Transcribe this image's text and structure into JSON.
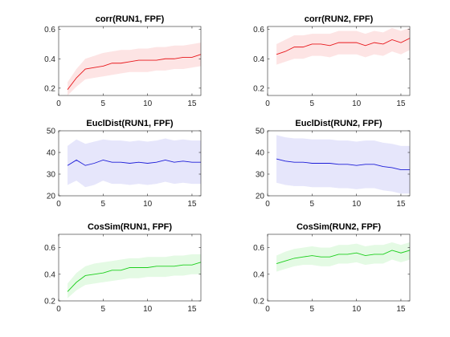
{
  "chart_data": [
    {
      "type": "line",
      "title": "corr(RUN1, FPF)",
      "xlabel": "",
      "ylabel": "",
      "xlim": [
        0,
        16
      ],
      "ylim": [
        0.15,
        0.62
      ],
      "xticks": [
        0,
        5,
        10,
        15
      ],
      "yticks": [
        0.2,
        0.4,
        0.6
      ],
      "xtick_labels": [
        "0",
        "5",
        "10",
        "15"
      ],
      "ytick_labels": [
        "0.2",
        "0.4",
        "0.6"
      ],
      "color": "#e8181c",
      "band_color": "#fde4e4",
      "x": [
        1,
        2,
        3,
        4,
        5,
        6,
        7,
        8,
        9,
        10,
        11,
        12,
        13,
        14,
        15,
        16
      ],
      "mean": [
        0.19,
        0.27,
        0.33,
        0.34,
        0.35,
        0.37,
        0.37,
        0.38,
        0.39,
        0.39,
        0.39,
        0.4,
        0.4,
        0.41,
        0.41,
        0.43
      ],
      "upper": [
        0.24,
        0.33,
        0.4,
        0.42,
        0.44,
        0.45,
        0.46,
        0.46,
        0.47,
        0.47,
        0.48,
        0.48,
        0.49,
        0.49,
        0.5,
        0.51
      ],
      "lower": [
        0.15,
        0.21,
        0.26,
        0.27,
        0.28,
        0.29,
        0.3,
        0.31,
        0.31,
        0.31,
        0.32,
        0.32,
        0.33,
        0.33,
        0.34,
        0.35
      ]
    },
    {
      "type": "line",
      "title": "corr(RUN2, FPF)",
      "xlabel": "",
      "ylabel": "",
      "xlim": [
        0,
        16
      ],
      "ylim": [
        0.15,
        0.62
      ],
      "xticks": [
        0,
        5,
        10,
        15
      ],
      "yticks": [
        0.2,
        0.4,
        0.6
      ],
      "xtick_labels": [
        "0",
        "5",
        "10",
        "15"
      ],
      "ytick_labels": [
        "0.2",
        "0.4",
        "0.6"
      ],
      "color": "#e8181c",
      "band_color": "#fde4e4",
      "x": [
        1,
        2,
        3,
        4,
        5,
        6,
        7,
        8,
        9,
        10,
        11,
        12,
        13,
        14,
        15,
        16
      ],
      "mean": [
        0.43,
        0.45,
        0.48,
        0.48,
        0.5,
        0.5,
        0.49,
        0.51,
        0.51,
        0.51,
        0.49,
        0.51,
        0.5,
        0.53,
        0.51,
        0.54
      ],
      "upper": [
        0.5,
        0.53,
        0.56,
        0.56,
        0.57,
        0.57,
        0.57,
        0.59,
        0.59,
        0.59,
        0.57,
        0.59,
        0.58,
        0.61,
        0.59,
        0.61
      ],
      "lower": [
        0.36,
        0.38,
        0.4,
        0.4,
        0.42,
        0.42,
        0.41,
        0.43,
        0.43,
        0.43,
        0.41,
        0.43,
        0.42,
        0.45,
        0.43,
        0.46
      ]
    },
    {
      "type": "line",
      "title": "EuclDist(RUN1, FPF)",
      "xlabel": "",
      "ylabel": "",
      "xlim": [
        0,
        16
      ],
      "ylim": [
        20,
        50
      ],
      "xticks": [
        0,
        5,
        10,
        15
      ],
      "yticks": [
        20,
        30,
        40,
        50
      ],
      "xtick_labels": [
        "0",
        "5",
        "10",
        "15"
      ],
      "ytick_labels": [
        "20",
        "30",
        "40",
        "50"
      ],
      "color": "#1c1cd8",
      "band_color": "#e6e6fb",
      "x": [
        1,
        2,
        3,
        4,
        5,
        6,
        7,
        8,
        9,
        10,
        11,
        12,
        13,
        14,
        15,
        16
      ],
      "mean": [
        34,
        36.5,
        34,
        35,
        36.5,
        35.5,
        35.5,
        35,
        35.5,
        35,
        35.5,
        36.5,
        35.5,
        36,
        35.5,
        35.5
      ],
      "upper": [
        43,
        46,
        44,
        45,
        46,
        45.5,
        45.5,
        45,
        45.5,
        45,
        45.5,
        46.5,
        45.5,
        46,
        45.5,
        45.5
      ],
      "lower": [
        25,
        27,
        24,
        25,
        27,
        25.5,
        25.5,
        25,
        25.5,
        25,
        25.5,
        26.5,
        25.5,
        26,
        25.5,
        25.5
      ]
    },
    {
      "type": "line",
      "title": "EuclDist(RUN2, FPF)",
      "xlabel": "",
      "ylabel": "",
      "xlim": [
        0,
        16
      ],
      "ylim": [
        20,
        50
      ],
      "xticks": [
        0,
        5,
        10,
        15
      ],
      "yticks": [
        20,
        30,
        40,
        50
      ],
      "xtick_labels": [
        "0",
        "5",
        "10",
        "15"
      ],
      "ytick_labels": [
        "20",
        "30",
        "40",
        "50"
      ],
      "color": "#1c1cd8",
      "band_color": "#e6e6fb",
      "x": [
        1,
        2,
        3,
        4,
        5,
        6,
        7,
        8,
        9,
        10,
        11,
        12,
        13,
        14,
        15,
        16
      ],
      "mean": [
        37,
        36,
        35.5,
        35.5,
        35,
        35,
        35,
        34.5,
        34.5,
        34,
        34.5,
        34.5,
        33.5,
        33,
        32,
        32
      ],
      "upper": [
        48,
        47,
        46.5,
        46.5,
        46,
        46,
        46,
        45.5,
        45.5,
        45,
        45.5,
        45.5,
        44.5,
        44,
        43,
        43
      ],
      "lower": [
        26,
        25,
        24.5,
        24.5,
        24,
        24,
        24,
        23.5,
        23.5,
        23,
        23.5,
        23.5,
        22.5,
        22,
        21,
        21
      ]
    },
    {
      "type": "line",
      "title": "CosSim(RUN1, FPF)",
      "xlabel": "",
      "ylabel": "",
      "xlim": [
        0,
        16
      ],
      "ylim": [
        0.2,
        0.7
      ],
      "xticks": [
        0,
        5,
        10,
        15
      ],
      "yticks": [
        0.2,
        0.4,
        0.6
      ],
      "xtick_labels": [
        "0",
        "5",
        "10",
        "15"
      ],
      "ytick_labels": [
        "0.2",
        "0.4",
        "0.6"
      ],
      "color": "#1ccf1c",
      "band_color": "#e4fae4",
      "x": [
        1,
        2,
        3,
        4,
        5,
        6,
        7,
        8,
        9,
        10,
        11,
        12,
        13,
        14,
        15,
        16
      ],
      "mean": [
        0.27,
        0.34,
        0.39,
        0.4,
        0.41,
        0.43,
        0.43,
        0.45,
        0.45,
        0.45,
        0.46,
        0.46,
        0.46,
        0.47,
        0.47,
        0.49
      ],
      "upper": [
        0.33,
        0.41,
        0.46,
        0.48,
        0.49,
        0.5,
        0.51,
        0.52,
        0.52,
        0.53,
        0.53,
        0.53,
        0.54,
        0.54,
        0.55,
        0.55
      ],
      "lower": [
        0.22,
        0.28,
        0.32,
        0.33,
        0.34,
        0.35,
        0.36,
        0.37,
        0.37,
        0.38,
        0.38,
        0.38,
        0.39,
        0.39,
        0.4,
        0.4
      ]
    },
    {
      "type": "line",
      "title": "CosSim(RUN2, FPF)",
      "xlabel": "",
      "ylabel": "",
      "xlim": [
        0,
        16
      ],
      "ylim": [
        0.2,
        0.7
      ],
      "xticks": [
        0,
        5,
        10,
        15
      ],
      "yticks": [
        0.2,
        0.4,
        0.6
      ],
      "xtick_labels": [
        "0",
        "5",
        "10",
        "15"
      ],
      "ytick_labels": [
        "0.2",
        "0.4",
        "0.6"
      ],
      "color": "#1ccf1c",
      "band_color": "#e4fae4",
      "x": [
        1,
        2,
        3,
        4,
        5,
        6,
        7,
        8,
        9,
        10,
        11,
        12,
        13,
        14,
        15,
        16
      ],
      "mean": [
        0.48,
        0.5,
        0.52,
        0.53,
        0.54,
        0.53,
        0.53,
        0.55,
        0.55,
        0.56,
        0.54,
        0.55,
        0.55,
        0.58,
        0.56,
        0.58
      ],
      "upper": [
        0.54,
        0.57,
        0.59,
        0.6,
        0.61,
        0.6,
        0.6,
        0.62,
        0.62,
        0.63,
        0.61,
        0.62,
        0.62,
        0.64,
        0.62,
        0.64
      ],
      "lower": [
        0.42,
        0.44,
        0.46,
        0.47,
        0.47,
        0.46,
        0.46,
        0.48,
        0.48,
        0.49,
        0.47,
        0.48,
        0.48,
        0.51,
        0.49,
        0.51
      ]
    }
  ]
}
